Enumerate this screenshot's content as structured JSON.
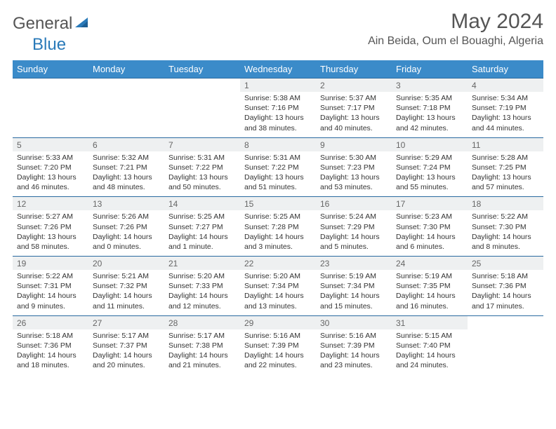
{
  "logo": {
    "text1": "General",
    "text2": "Blue"
  },
  "title": "May 2024",
  "location": "Ain Beida, Oum el Bouaghi, Algeria",
  "colors": {
    "header_bg": "#3b8bc9",
    "header_text": "#ffffff",
    "daynum_bg": "#eef0f1",
    "border": "#2a6aa0",
    "body_text": "#333333",
    "title_text": "#555555",
    "logo_blue": "#2a7ab9"
  },
  "weekdays": [
    "Sunday",
    "Monday",
    "Tuesday",
    "Wednesday",
    "Thursday",
    "Friday",
    "Saturday"
  ],
  "weeks": [
    {
      "nums": [
        "",
        "",
        "",
        "1",
        "2",
        "3",
        "4"
      ],
      "cells": [
        {},
        {},
        {},
        {
          "sunrise": "Sunrise: 5:38 AM",
          "sunset": "Sunset: 7:16 PM",
          "day1": "Daylight: 13 hours",
          "day2": "and 38 minutes."
        },
        {
          "sunrise": "Sunrise: 5:37 AM",
          "sunset": "Sunset: 7:17 PM",
          "day1": "Daylight: 13 hours",
          "day2": "and 40 minutes."
        },
        {
          "sunrise": "Sunrise: 5:35 AM",
          "sunset": "Sunset: 7:18 PM",
          "day1": "Daylight: 13 hours",
          "day2": "and 42 minutes."
        },
        {
          "sunrise": "Sunrise: 5:34 AM",
          "sunset": "Sunset: 7:19 PM",
          "day1": "Daylight: 13 hours",
          "day2": "and 44 minutes."
        }
      ]
    },
    {
      "nums": [
        "5",
        "6",
        "7",
        "8",
        "9",
        "10",
        "11"
      ],
      "cells": [
        {
          "sunrise": "Sunrise: 5:33 AM",
          "sunset": "Sunset: 7:20 PM",
          "day1": "Daylight: 13 hours",
          "day2": "and 46 minutes."
        },
        {
          "sunrise": "Sunrise: 5:32 AM",
          "sunset": "Sunset: 7:21 PM",
          "day1": "Daylight: 13 hours",
          "day2": "and 48 minutes."
        },
        {
          "sunrise": "Sunrise: 5:31 AM",
          "sunset": "Sunset: 7:22 PM",
          "day1": "Daylight: 13 hours",
          "day2": "and 50 minutes."
        },
        {
          "sunrise": "Sunrise: 5:31 AM",
          "sunset": "Sunset: 7:22 PM",
          "day1": "Daylight: 13 hours",
          "day2": "and 51 minutes."
        },
        {
          "sunrise": "Sunrise: 5:30 AM",
          "sunset": "Sunset: 7:23 PM",
          "day1": "Daylight: 13 hours",
          "day2": "and 53 minutes."
        },
        {
          "sunrise": "Sunrise: 5:29 AM",
          "sunset": "Sunset: 7:24 PM",
          "day1": "Daylight: 13 hours",
          "day2": "and 55 minutes."
        },
        {
          "sunrise": "Sunrise: 5:28 AM",
          "sunset": "Sunset: 7:25 PM",
          "day1": "Daylight: 13 hours",
          "day2": "and 57 minutes."
        }
      ]
    },
    {
      "nums": [
        "12",
        "13",
        "14",
        "15",
        "16",
        "17",
        "18"
      ],
      "cells": [
        {
          "sunrise": "Sunrise: 5:27 AM",
          "sunset": "Sunset: 7:26 PM",
          "day1": "Daylight: 13 hours",
          "day2": "and 58 minutes."
        },
        {
          "sunrise": "Sunrise: 5:26 AM",
          "sunset": "Sunset: 7:26 PM",
          "day1": "Daylight: 14 hours",
          "day2": "and 0 minutes."
        },
        {
          "sunrise": "Sunrise: 5:25 AM",
          "sunset": "Sunset: 7:27 PM",
          "day1": "Daylight: 14 hours",
          "day2": "and 1 minute."
        },
        {
          "sunrise": "Sunrise: 5:25 AM",
          "sunset": "Sunset: 7:28 PM",
          "day1": "Daylight: 14 hours",
          "day2": "and 3 minutes."
        },
        {
          "sunrise": "Sunrise: 5:24 AM",
          "sunset": "Sunset: 7:29 PM",
          "day1": "Daylight: 14 hours",
          "day2": "and 5 minutes."
        },
        {
          "sunrise": "Sunrise: 5:23 AM",
          "sunset": "Sunset: 7:30 PM",
          "day1": "Daylight: 14 hours",
          "day2": "and 6 minutes."
        },
        {
          "sunrise": "Sunrise: 5:22 AM",
          "sunset": "Sunset: 7:30 PM",
          "day1": "Daylight: 14 hours",
          "day2": "and 8 minutes."
        }
      ]
    },
    {
      "nums": [
        "19",
        "20",
        "21",
        "22",
        "23",
        "24",
        "25"
      ],
      "cells": [
        {
          "sunrise": "Sunrise: 5:22 AM",
          "sunset": "Sunset: 7:31 PM",
          "day1": "Daylight: 14 hours",
          "day2": "and 9 minutes."
        },
        {
          "sunrise": "Sunrise: 5:21 AM",
          "sunset": "Sunset: 7:32 PM",
          "day1": "Daylight: 14 hours",
          "day2": "and 11 minutes."
        },
        {
          "sunrise": "Sunrise: 5:20 AM",
          "sunset": "Sunset: 7:33 PM",
          "day1": "Daylight: 14 hours",
          "day2": "and 12 minutes."
        },
        {
          "sunrise": "Sunrise: 5:20 AM",
          "sunset": "Sunset: 7:34 PM",
          "day1": "Daylight: 14 hours",
          "day2": "and 13 minutes."
        },
        {
          "sunrise": "Sunrise: 5:19 AM",
          "sunset": "Sunset: 7:34 PM",
          "day1": "Daylight: 14 hours",
          "day2": "and 15 minutes."
        },
        {
          "sunrise": "Sunrise: 5:19 AM",
          "sunset": "Sunset: 7:35 PM",
          "day1": "Daylight: 14 hours",
          "day2": "and 16 minutes."
        },
        {
          "sunrise": "Sunrise: 5:18 AM",
          "sunset": "Sunset: 7:36 PM",
          "day1": "Daylight: 14 hours",
          "day2": "and 17 minutes."
        }
      ]
    },
    {
      "nums": [
        "26",
        "27",
        "28",
        "29",
        "30",
        "31",
        ""
      ],
      "cells": [
        {
          "sunrise": "Sunrise: 5:18 AM",
          "sunset": "Sunset: 7:36 PM",
          "day1": "Daylight: 14 hours",
          "day2": "and 18 minutes."
        },
        {
          "sunrise": "Sunrise: 5:17 AM",
          "sunset": "Sunset: 7:37 PM",
          "day1": "Daylight: 14 hours",
          "day2": "and 20 minutes."
        },
        {
          "sunrise": "Sunrise: 5:17 AM",
          "sunset": "Sunset: 7:38 PM",
          "day1": "Daylight: 14 hours",
          "day2": "and 21 minutes."
        },
        {
          "sunrise": "Sunrise: 5:16 AM",
          "sunset": "Sunset: 7:39 PM",
          "day1": "Daylight: 14 hours",
          "day2": "and 22 minutes."
        },
        {
          "sunrise": "Sunrise: 5:16 AM",
          "sunset": "Sunset: 7:39 PM",
          "day1": "Daylight: 14 hours",
          "day2": "and 23 minutes."
        },
        {
          "sunrise": "Sunrise: 5:15 AM",
          "sunset": "Sunset: 7:40 PM",
          "day1": "Daylight: 14 hours",
          "day2": "and 24 minutes."
        },
        {}
      ]
    }
  ]
}
